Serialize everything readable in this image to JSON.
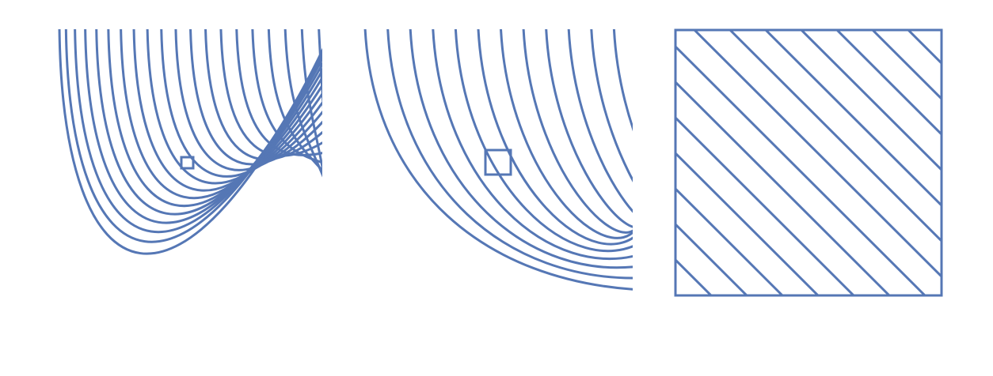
{
  "figure": {
    "line_color": "#5577b5",
    "background": "#ffffff",
    "panels": [
      {
        "id": "panel-1",
        "kind": "curved-contours",
        "zoom_box": true,
        "frame": false
      },
      {
        "id": "panel-2",
        "kind": "curved-contours-zoomed",
        "zoom_box": true,
        "frame": false
      },
      {
        "id": "panel-3",
        "kind": "straight-diagonal-lines",
        "zoom_box": false,
        "frame": true
      }
    ]
  }
}
